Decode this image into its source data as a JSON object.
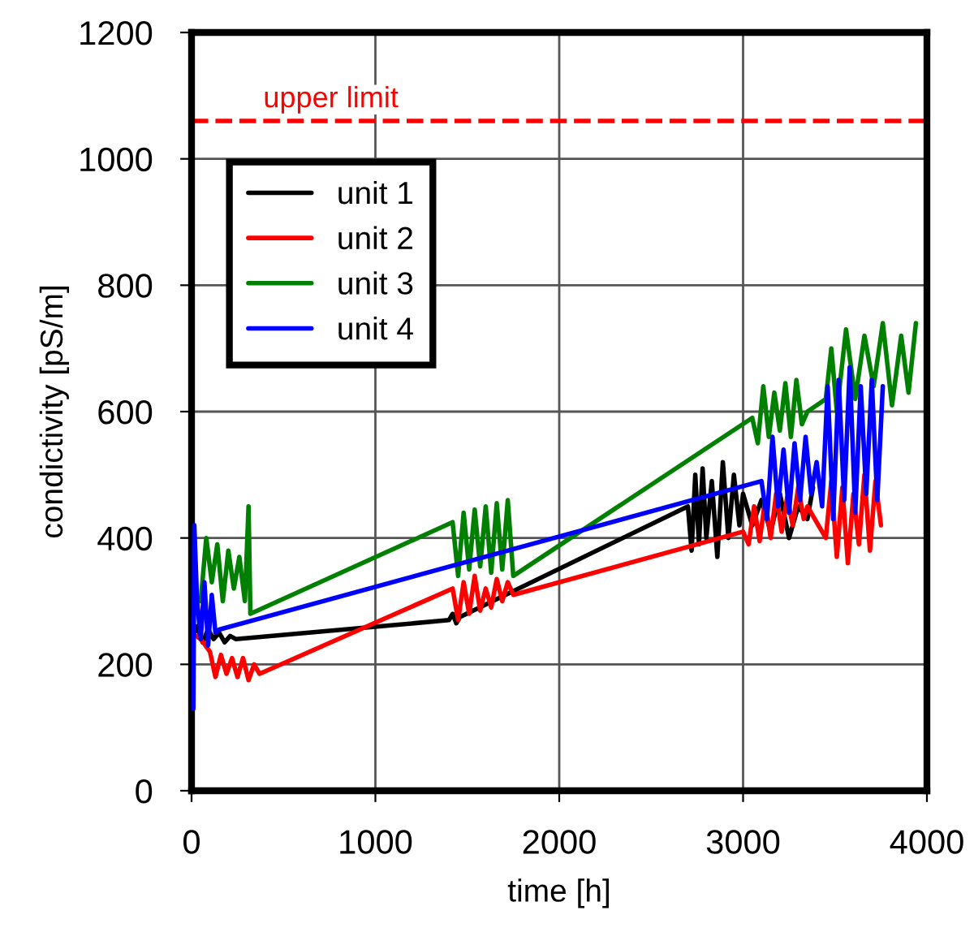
{
  "chart_data": {
    "type": "line",
    "xlabel": "time [h]",
    "ylabel": "condictivity [pS/m]",
    "xlim": [
      0,
      4000
    ],
    "ylim": [
      0,
      1200
    ],
    "xticks": [
      0,
      1000,
      2000,
      3000,
      4000
    ],
    "yticks": [
      0,
      200,
      400,
      600,
      800,
      1000,
      1200
    ],
    "grid": true,
    "legend": "top left",
    "line_style": "solid",
    "marker": "none",
    "ref_lines": [
      {
        "axis": "y",
        "value": 1060,
        "label": "upper limit",
        "color": "#ff0000",
        "line_style": "dashed"
      }
    ],
    "series": [
      {
        "name": "unit 1",
        "color": "#000000",
        "x": [
          0,
          30,
          60,
          90,
          120,
          150,
          180,
          210,
          240,
          1400,
          1420,
          1440,
          1460,
          2700,
          2720,
          2740,
          2760,
          2780,
          2800,
          2830,
          2860,
          2890,
          2920,
          2950,
          2980,
          3000,
          3050,
          3100,
          3150,
          3200,
          3250,
          3300,
          3350,
          3380
        ],
        "values": [
          240,
          260,
          235,
          255,
          240,
          250,
          235,
          245,
          240,
          270,
          280,
          265,
          275,
          450,
          380,
          500,
          390,
          510,
          400,
          490,
          370,
          520,
          400,
          500,
          420,
          470,
          420,
          460,
          410,
          470,
          400,
          450,
          430,
          480
        ]
      },
      {
        "name": "unit 2",
        "color": "#ff0000",
        "x": [
          0,
          50,
          100,
          130,
          160,
          190,
          220,
          250,
          280,
          310,
          340,
          370,
          1420,
          1450,
          1480,
          1510,
          1540,
          1570,
          1600,
          1630,
          1660,
          1690,
          1720,
          1750,
          3000,
          3030,
          3060,
          3090,
          3120,
          3150,
          3180,
          3210,
          3240,
          3270,
          3300,
          3330,
          3350,
          3450,
          3480,
          3510,
          3540,
          3570,
          3600,
          3630,
          3660,
          3690,
          3720,
          3750
        ],
        "values": [
          250,
          240,
          220,
          180,
          215,
          185,
          210,
          180,
          210,
          175,
          200,
          185,
          320,
          270,
          330,
          280,
          340,
          285,
          320,
          290,
          335,
          300,
          330,
          310,
          410,
          390,
          450,
          395,
          460,
          400,
          470,
          410,
          465,
          420,
          480,
          430,
          450,
          400,
          490,
          370,
          480,
          360,
          470,
          390,
          500,
          380,
          490,
          420
        ]
      },
      {
        "name": "unit 3",
        "color": "#008000",
        "x": [
          50,
          80,
          110,
          140,
          170,
          200,
          230,
          260,
          290,
          310,
          320,
          1420,
          1450,
          1480,
          1510,
          1540,
          1570,
          1600,
          1630,
          1660,
          1690,
          1720,
          1750,
          3050,
          3080,
          3110,
          3140,
          3170,
          3200,
          3230,
          3260,
          3290,
          3320,
          3350,
          3450,
          3480,
          3510,
          3560,
          3610,
          3660,
          3710,
          3760,
          3810,
          3860,
          3900,
          3940
        ],
        "values": [
          300,
          400,
          330,
          390,
          300,
          380,
          320,
          370,
          300,
          450,
          280,
          425,
          340,
          440,
          350,
          445,
          355,
          450,
          345,
          455,
          350,
          460,
          340,
          590,
          550,
          640,
          560,
          630,
          570,
          645,
          560,
          650,
          580,
          600,
          620,
          700,
          600,
          730,
          620,
          720,
          640,
          740,
          610,
          720,
          630,
          740
        ]
      },
      {
        "name": "unit 4",
        "color": "#0000ff",
        "x": [
          0,
          10,
          15,
          30,
          50,
          70,
          90,
          110,
          130,
          150,
          3100,
          3130,
          3160,
          3190,
          3220,
          3250,
          3280,
          3310,
          3340,
          3370,
          3400,
          3430,
          3460,
          3490,
          3520,
          3550,
          3580,
          3610,
          3640,
          3670,
          3700,
          3730,
          3760
        ],
        "values": [
          240,
          130,
          420,
          300,
          240,
          330,
          230,
          310,
          250,
          255,
          490,
          430,
          560,
          450,
          540,
          440,
          550,
          460,
          560,
          470,
          520,
          450,
          640,
          430,
          650,
          460,
          670,
          440,
          640,
          470,
          650,
          460,
          640
        ]
      }
    ]
  }
}
